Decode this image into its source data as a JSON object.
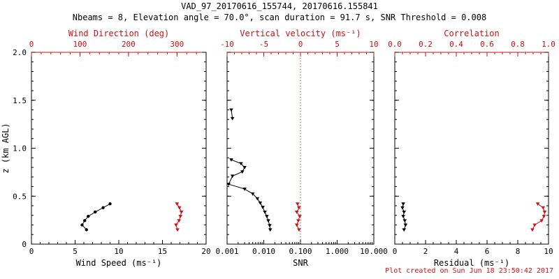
{
  "title": "VAD_97_20170616_155744, 20170616.155841",
  "subtitle": "Nbeams = 8, Elevation angle = 70.0°, scan duration = 91.7 s, SNR Threshold = 0.008",
  "footer": "Plot created on Sun Jun 18 23:50:42 2017",
  "colors": {
    "primary": "#000000",
    "secondary": "#cc1111",
    "background": "#ffffff"
  },
  "y_axis": {
    "label": "z (km AGL)",
    "lim": [
      0,
      2
    ],
    "ticks": [
      0,
      0.5,
      1,
      1.5,
      2
    ],
    "tick_labels": [
      "0",
      "0.5",
      "1.0",
      "1.5",
      "2.0"
    ],
    "minor": 5
  },
  "chart_data": [
    {
      "type": "line",
      "name": "wind",
      "bottom_axis": {
        "label": "Wind Speed (ms⁻¹)",
        "color": "#000000",
        "scale": "linear",
        "lim": [
          0,
          20
        ],
        "ticks": [
          0,
          5,
          10,
          15,
          20
        ],
        "tick_labels": [
          "0",
          "5",
          "10",
          "15",
          "20"
        ],
        "minor": 5
      },
      "top_axis": {
        "label": "Wind Direction (deg)",
        "color": "#cc1111",
        "scale": "linear",
        "lim": [
          0,
          360
        ],
        "ticks": [
          0,
          100,
          200,
          300
        ],
        "tick_labels": [
          "0",
          "100",
          "200",
          "300"
        ],
        "minor": 5
      },
      "series": [
        {
          "name": "wind-speed",
          "axis": "bottom",
          "color": "#000000",
          "marker": "circle",
          "points": [
            [
              9.0,
              0.42
            ],
            [
              8.2,
              0.38
            ],
            [
              7.3,
              0.335
            ],
            [
              6.5,
              0.29
            ],
            [
              6.1,
              0.245
            ],
            [
              5.8,
              0.2
            ],
            [
              6.3,
              0.15
            ]
          ]
        },
        {
          "name": "wind-direction",
          "axis": "top",
          "color": "#cc1111",
          "marker": "triangle-down",
          "points": [
            [
              300,
              0.42
            ],
            [
              305,
              0.38
            ],
            [
              309,
              0.335
            ],
            [
              307,
              0.29
            ],
            [
              304,
              0.245
            ],
            [
              298,
              0.2
            ],
            [
              301,
              0.15
            ]
          ]
        }
      ]
    },
    {
      "type": "line",
      "name": "snr",
      "bottom_axis": {
        "label": "SNR",
        "color": "#000000",
        "scale": "log",
        "lim": [
          0.001,
          10
        ],
        "ticks": [
          0.001,
          0.01,
          0.1,
          1,
          10
        ],
        "tick_labels": [
          "0.001",
          "0.010",
          "0.100",
          "1.000",
          "10.000"
        ]
      },
      "top_axis": {
        "label": "Vertical velocity (ms⁻¹)",
        "color": "#cc1111",
        "scale": "linear",
        "lim": [
          -10,
          10
        ],
        "ticks": [
          -10,
          -5,
          0,
          5,
          10
        ],
        "tick_labels": [
          "-10",
          "-5",
          "0",
          "5",
          "10"
        ],
        "minor": 5
      },
      "refline": {
        "axis": "top",
        "value": 0,
        "style": "dotted",
        "color": "#cc1111"
      },
      "series": [
        {
          "name": "snr-upper",
          "axis": "bottom",
          "color": "#000000",
          "marker": "triangle-down",
          "points": [
            [
              0.0013,
              1.4
            ],
            [
              0.0014,
              1.31
            ]
          ]
        },
        {
          "name": "snr-profile",
          "axis": "bottom",
          "color": "#000000",
          "marker": "triangle-down",
          "points": [
            [
              0.0013,
              0.88
            ],
            [
              0.0024,
              0.84
            ],
            [
              0.003,
              0.8
            ],
            [
              0.0026,
              0.755
            ],
            [
              0.0014,
              0.71
            ],
            [
              0.0011,
              0.625
            ],
            [
              0.003,
              0.575
            ],
            [
              0.005,
              0.525
            ],
            [
              0.0067,
              0.475
            ],
            [
              0.008,
              0.43
            ],
            [
              0.0094,
              0.385
            ],
            [
              0.0107,
              0.335
            ],
            [
              0.0121,
              0.29
            ],
            [
              0.0133,
              0.245
            ],
            [
              0.0145,
              0.195
            ],
            [
              0.015,
              0.15
            ]
          ]
        },
        {
          "name": "vertical-velocity",
          "axis": "top",
          "color": "#cc1111",
          "marker": "triangle-down",
          "points": [
            [
              -0.4,
              0.42
            ],
            [
              -0.2,
              0.38
            ],
            [
              -0.5,
              0.335
            ],
            [
              -0.1,
              0.29
            ],
            [
              -0.3,
              0.245
            ],
            [
              -0.5,
              0.2
            ],
            [
              -0.2,
              0.15
            ]
          ]
        }
      ]
    },
    {
      "type": "line",
      "name": "residual",
      "bottom_axis": {
        "label": "Residual (ms⁻¹)",
        "color": "#000000",
        "scale": "linear",
        "lim": [
          0,
          10
        ],
        "ticks": [
          0,
          2,
          4,
          6,
          8,
          10
        ],
        "tick_labels": [
          "0",
          "2",
          "4",
          "6",
          "8",
          "10"
        ],
        "minor": 4
      },
      "top_axis": {
        "label": "Correlation",
        "color": "#cc1111",
        "scale": "linear",
        "lim": [
          0,
          1
        ],
        "ticks": [
          0,
          0.2,
          0.4,
          0.6,
          0.8,
          1
        ],
        "tick_labels": [
          "0.0",
          "0.2",
          "0.4",
          "0.6",
          "0.8",
          "1.0"
        ],
        "minor": 4
      },
      "series": [
        {
          "name": "residual",
          "axis": "bottom",
          "color": "#000000",
          "marker": "triangle-down",
          "points": [
            [
              0.55,
              0.42
            ],
            [
              0.5,
              0.38
            ],
            [
              0.6,
              0.335
            ],
            [
              0.55,
              0.29
            ],
            [
              0.65,
              0.245
            ],
            [
              0.7,
              0.2
            ],
            [
              0.6,
              0.15
            ]
          ]
        },
        {
          "name": "correlation",
          "axis": "top",
          "color": "#cc1111",
          "marker": "triangle-down",
          "points": [
            [
              0.93,
              0.42
            ],
            [
              0.965,
              0.38
            ],
            [
              0.975,
              0.335
            ],
            [
              0.97,
              0.29
            ],
            [
              0.955,
              0.245
            ],
            [
              0.91,
              0.2
            ],
            [
              0.895,
              0.15
            ]
          ]
        }
      ]
    }
  ]
}
